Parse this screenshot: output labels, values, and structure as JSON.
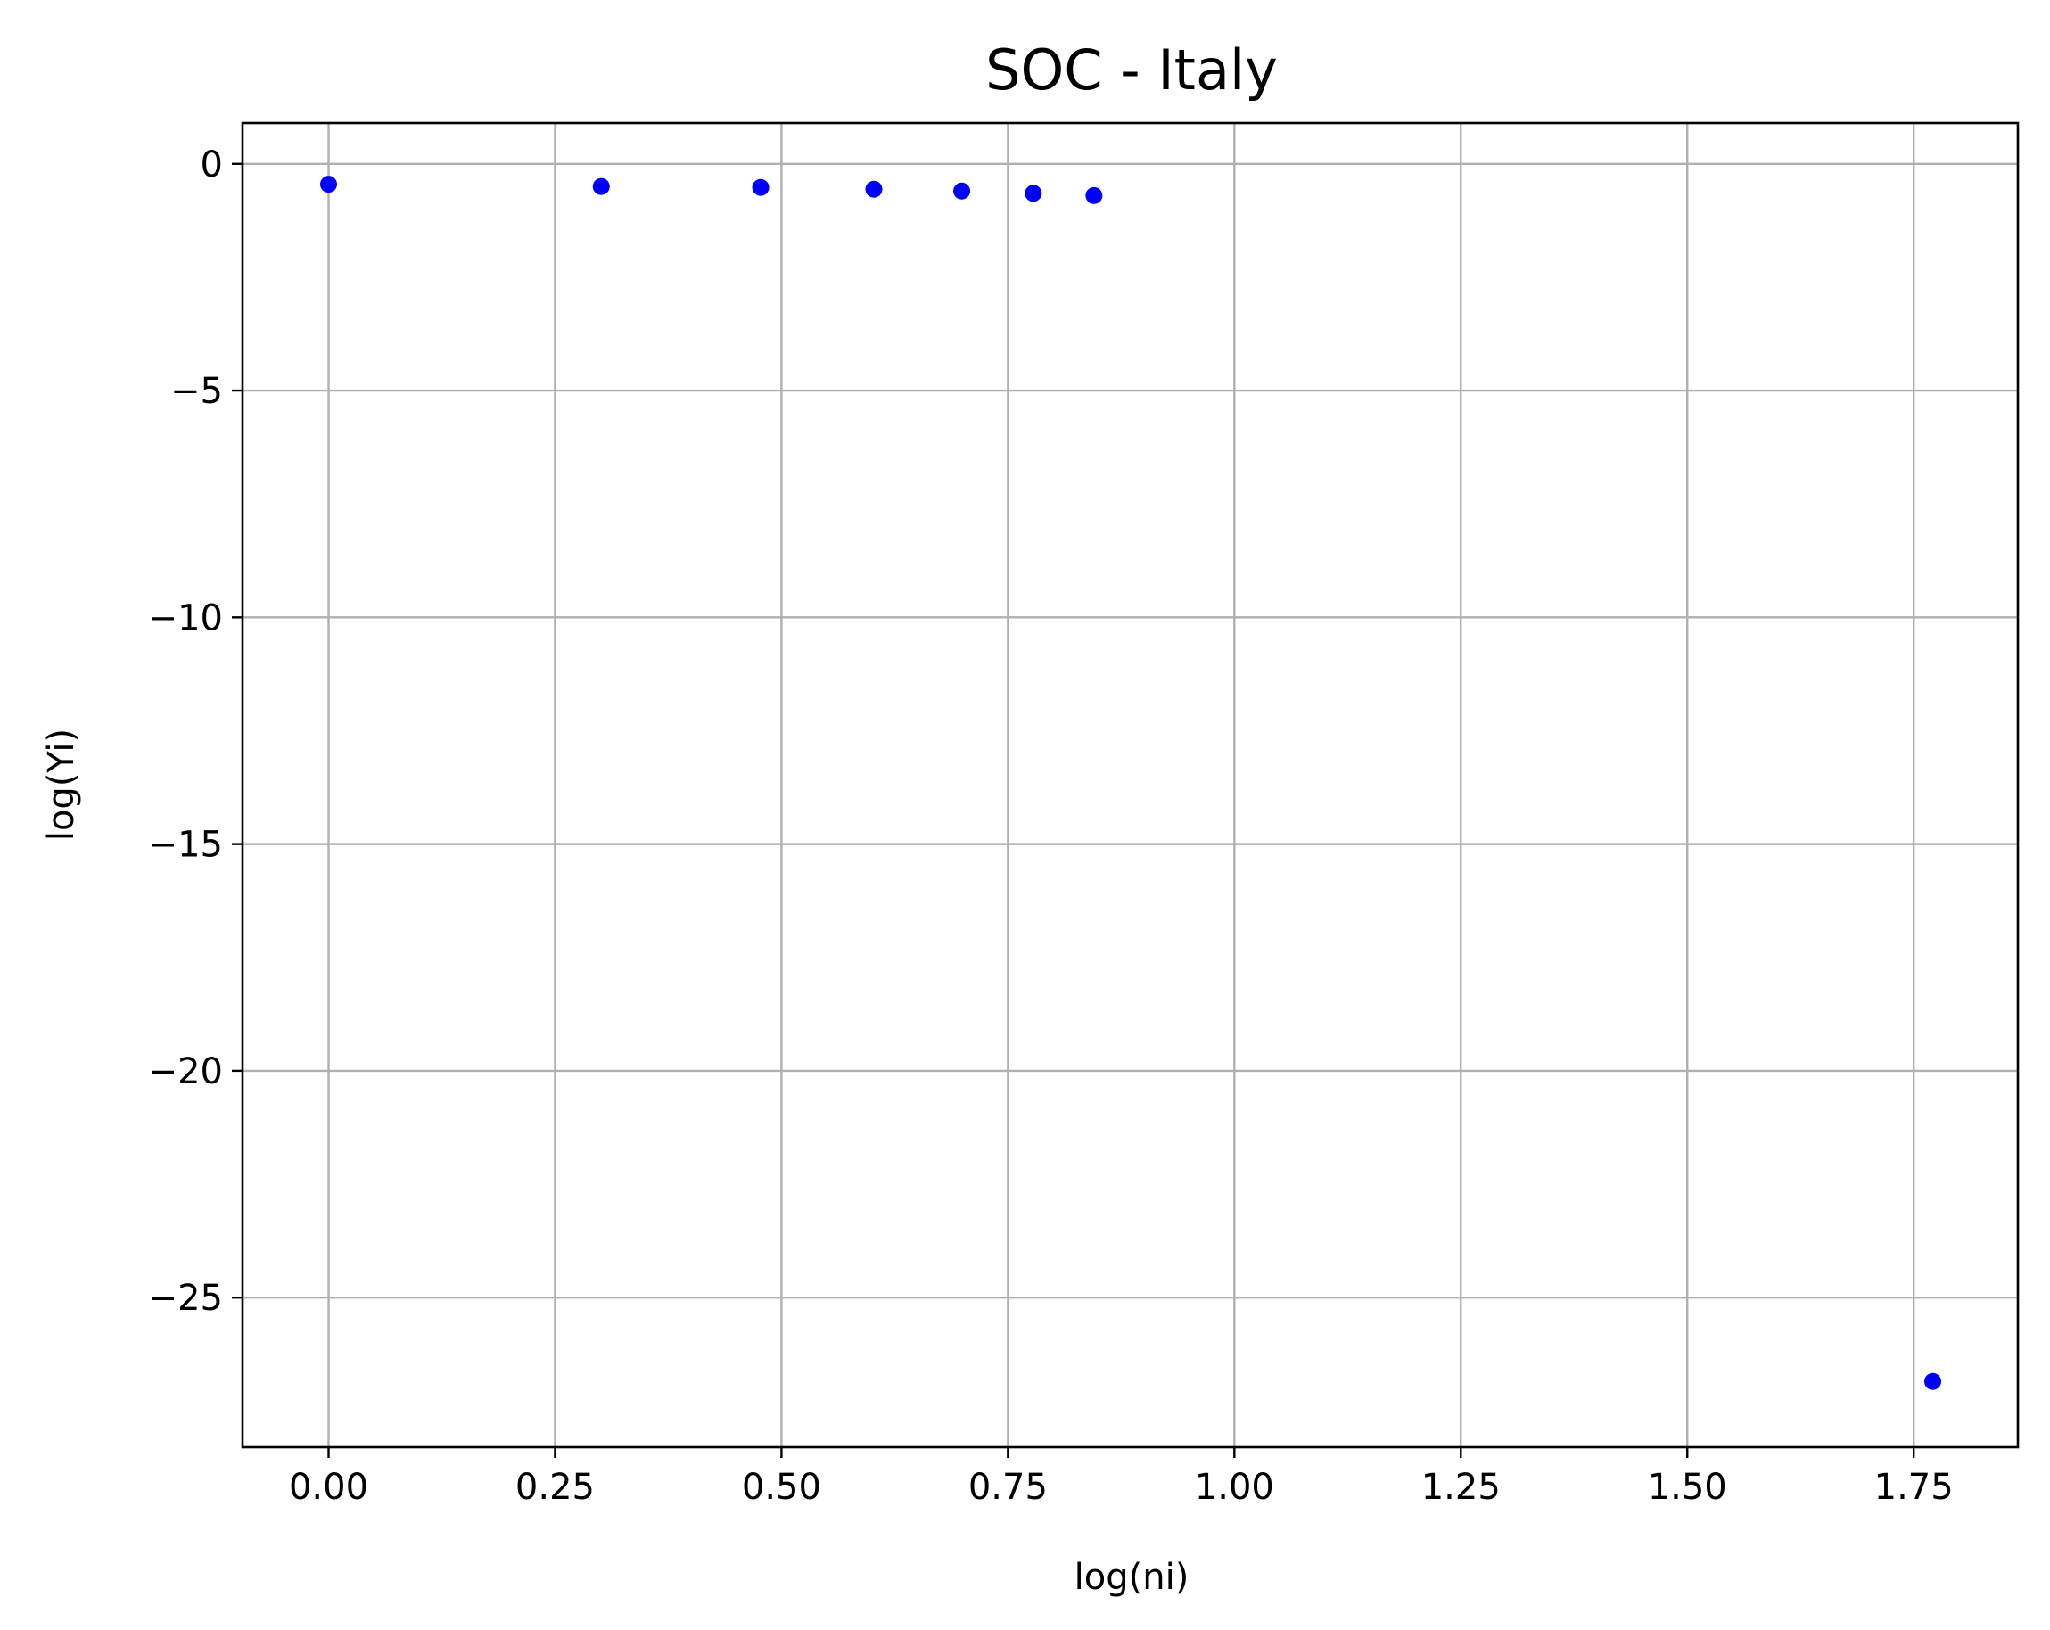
{
  "chart_data": {
    "type": "scatter",
    "title": "SOC - Italy",
    "xlabel": "log(ni)",
    "ylabel": "log(Yi)",
    "xlim": [
      -0.095,
      1.865
    ],
    "ylim": [
      -28.3,
      0.9
    ],
    "grid": true,
    "legend": "none",
    "marker_color": "#0000ff",
    "x_ticks": [
      0.0,
      0.25,
      0.5,
      0.75,
      1.0,
      1.25,
      1.5,
      1.75
    ],
    "x_tick_labels": [
      "0.00",
      "0.25",
      "0.50",
      "0.75",
      "1.00",
      "1.25",
      "1.50",
      "1.75"
    ],
    "y_ticks": [
      0,
      -5,
      -10,
      -15,
      -20,
      -25
    ],
    "y_tick_labels": [
      "0",
      "−5",
      "−10",
      "−15",
      "−20",
      "−25"
    ],
    "series": [
      {
        "x": [
          0.0,
          0.301,
          0.477,
          0.602,
          0.699,
          0.778,
          0.845,
          1.771
        ],
        "y": [
          -0.45,
          -0.5,
          -0.52,
          -0.56,
          -0.6,
          -0.65,
          -0.7,
          -26.85
        ]
      }
    ]
  }
}
